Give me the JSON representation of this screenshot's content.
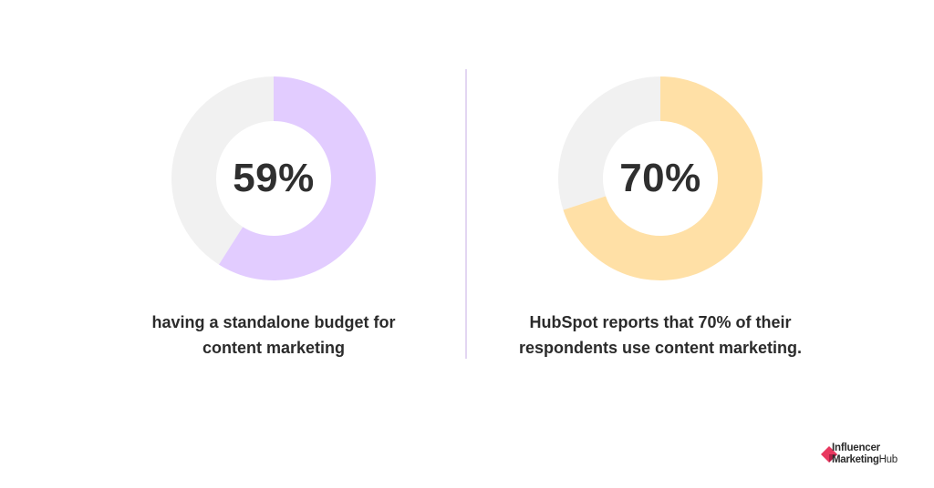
{
  "chart_data": [
    {
      "type": "pie",
      "style": "donut",
      "value_percent": 59,
      "center_label": "59%",
      "caption_lines": [
        "having a standalone budget for",
        "content marketing"
      ],
      "colors": {
        "value": "#e2ccff",
        "remainder": "#f1f1f1"
      }
    },
    {
      "type": "pie",
      "style": "donut",
      "value_percent": 70,
      "center_label": "70%",
      "caption_lines": [
        "HubSpot reports that 70% of their",
        "respondents use content marketing."
      ],
      "colors": {
        "value": "#ffe0a6",
        "remainder": "#f1f1f1"
      }
    }
  ],
  "brand": {
    "line1": "Influencer",
    "line2_bold": "Marketing",
    "line2_regular": "Hub",
    "mark_color": "#e8385f",
    "mark_dark": "#b01f45"
  },
  "colors": {
    "divider": "#e3d6f2",
    "text": "#2b2b2b"
  }
}
